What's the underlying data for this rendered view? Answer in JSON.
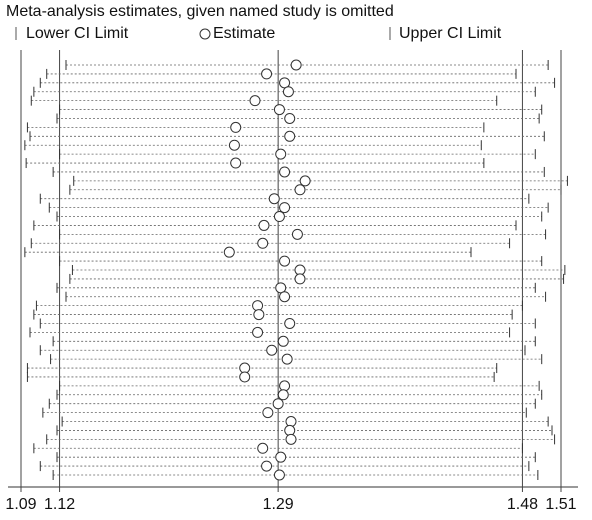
{
  "chart_data": {
    "type": "influence",
    "title": "Meta-analysis estimates, given named study is omitted",
    "xlim": [
      1.083,
      1.517
    ],
    "xticks": [
      1.09,
      1.12,
      1.29,
      1.48,
      1.51
    ],
    "color": "#333333",
    "series": [
      {
        "name": "Lower CI Limit",
        "values": [
          1.125,
          1.11,
          1.105,
          1.1,
          1.098,
          1.12,
          1.118,
          1.095,
          1.097,
          1.093,
          1.12,
          1.094,
          1.115,
          1.131,
          1.128,
          1.105,
          1.112,
          1.118,
          1.1,
          1.12,
          1.098,
          1.093,
          1.12,
          1.13,
          1.128,
          1.118,
          1.125,
          1.102,
          1.1,
          1.105,
          1.097,
          1.115,
          1.105,
          1.113,
          1.095,
          1.095,
          1.12,
          1.118,
          1.112,
          1.107,
          1.122,
          1.118,
          1.11,
          1.1,
          1.118,
          1.105,
          1.115
        ]
      },
      {
        "name": "Estimate",
        "values": [
          1.304,
          1.281,
          1.295,
          1.298,
          1.272,
          1.291,
          1.299,
          1.257,
          1.299,
          1.256,
          1.292,
          1.257,
          1.295,
          1.311,
          1.307,
          1.287,
          1.295,
          1.291,
          1.279,
          1.305,
          1.278,
          1.252,
          1.295,
          1.307,
          1.307,
          1.292,
          1.295,
          1.274,
          1.275,
          1.299,
          1.274,
          1.294,
          1.285,
          1.297,
          1.264,
          1.264,
          1.295,
          1.294,
          1.29,
          1.282,
          1.3,
          1.299,
          1.3,
          1.278,
          1.292,
          1.281,
          1.291
        ]
      },
      {
        "name": "Upper CI Limit",
        "values": [
          1.5,
          1.475,
          1.505,
          1.49,
          1.46,
          1.495,
          1.493,
          1.45,
          1.497,
          1.448,
          1.49,
          1.45,
          1.497,
          1.515,
          1.51,
          1.485,
          1.5,
          1.495,
          1.475,
          1.498,
          1.47,
          1.44,
          1.495,
          1.513,
          1.512,
          1.49,
          1.498,
          1.48,
          1.472,
          1.49,
          1.47,
          1.49,
          1.482,
          1.495,
          1.46,
          1.458,
          1.493,
          1.495,
          1.49,
          1.483,
          1.5,
          1.503,
          1.505,
          1.48,
          1.49,
          1.485,
          1.492
        ]
      }
    ]
  }
}
